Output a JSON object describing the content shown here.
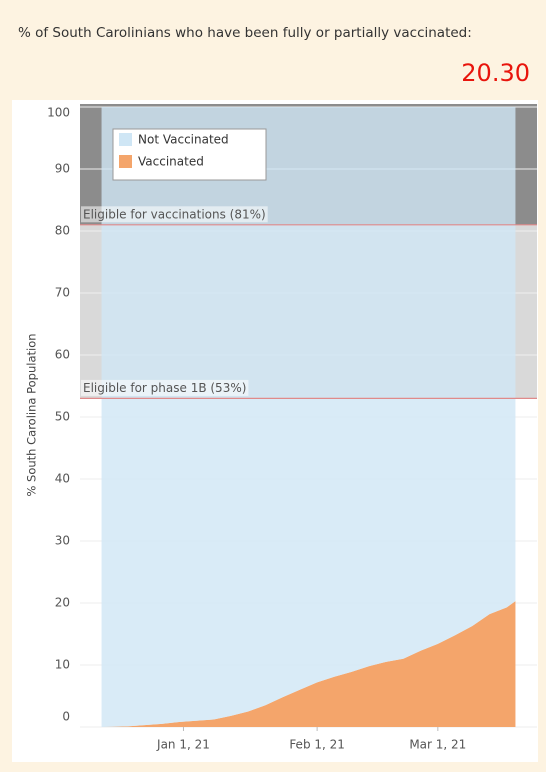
{
  "header": {
    "title": "% of South Carolinians who have been fully or partially vaccinated:",
    "value": "20.30"
  },
  "chart_data": {
    "type": "stacked-area",
    "y_label": "% South Carolina Population",
    "x": [
      "2020-12-13",
      "2020-12-19",
      "2020-12-23",
      "2020-12-27",
      "2020-12-31",
      "2021-01-04",
      "2021-01-08",
      "2021-01-12",
      "2021-01-16",
      "2021-01-20",
      "2021-01-24",
      "2021-01-28",
      "2021-02-01",
      "2021-02-05",
      "2021-02-09",
      "2021-02-13",
      "2021-02-17",
      "2021-02-21",
      "2021-02-25",
      "2021-03-01",
      "2021-03-05",
      "2021-03-09",
      "2021-03-13",
      "2021-03-17",
      "2021-03-19"
    ],
    "series": [
      {
        "name": "Not Vaccinated",
        "color": "#cfe6f5",
        "values": [
          100,
          99.9,
          99.7,
          99.5,
          99.2,
          99,
          98.8,
          98.2,
          97.5,
          96.5,
          95.2,
          94,
          92.8,
          91.9,
          91.1,
          90.2,
          89.5,
          89,
          87.7,
          86.6,
          85.2,
          83.7,
          81.8,
          80.7,
          79.7
        ]
      },
      {
        "name": "Vaccinated",
        "color": "#f4a56b",
        "values": [
          0,
          0.1,
          0.3,
          0.5,
          0.8,
          1,
          1.2,
          1.8,
          2.5,
          3.5,
          4.8,
          6,
          7.2,
          8.1,
          8.9,
          9.8,
          10.5,
          11,
          12.3,
          13.4,
          14.8,
          16.3,
          18.2,
          19.3,
          20.3
        ]
      }
    ],
    "xlim": [
      "2020-12-08",
      "2021-03-24"
    ],
    "xticks": [
      {
        "value": "2021-01-01",
        "label": "Jan 1, 21"
      },
      {
        "value": "2021-02-01",
        "label": "Feb 1, 21"
      },
      {
        "value": "2021-03-01",
        "label": "Mar 1, 21"
      }
    ],
    "ylim": [
      0,
      100
    ],
    "yticks": [
      0,
      10,
      20,
      30,
      40,
      50,
      60,
      70,
      80,
      90,
      100
    ],
    "grid": true,
    "legend": "top-left",
    "reference_lines": [
      {
        "value": 81,
        "label": "Eligible for vaccinations (81%)"
      },
      {
        "value": 53,
        "label": "Eligible for phase 1B (53%)"
      }
    ]
  }
}
